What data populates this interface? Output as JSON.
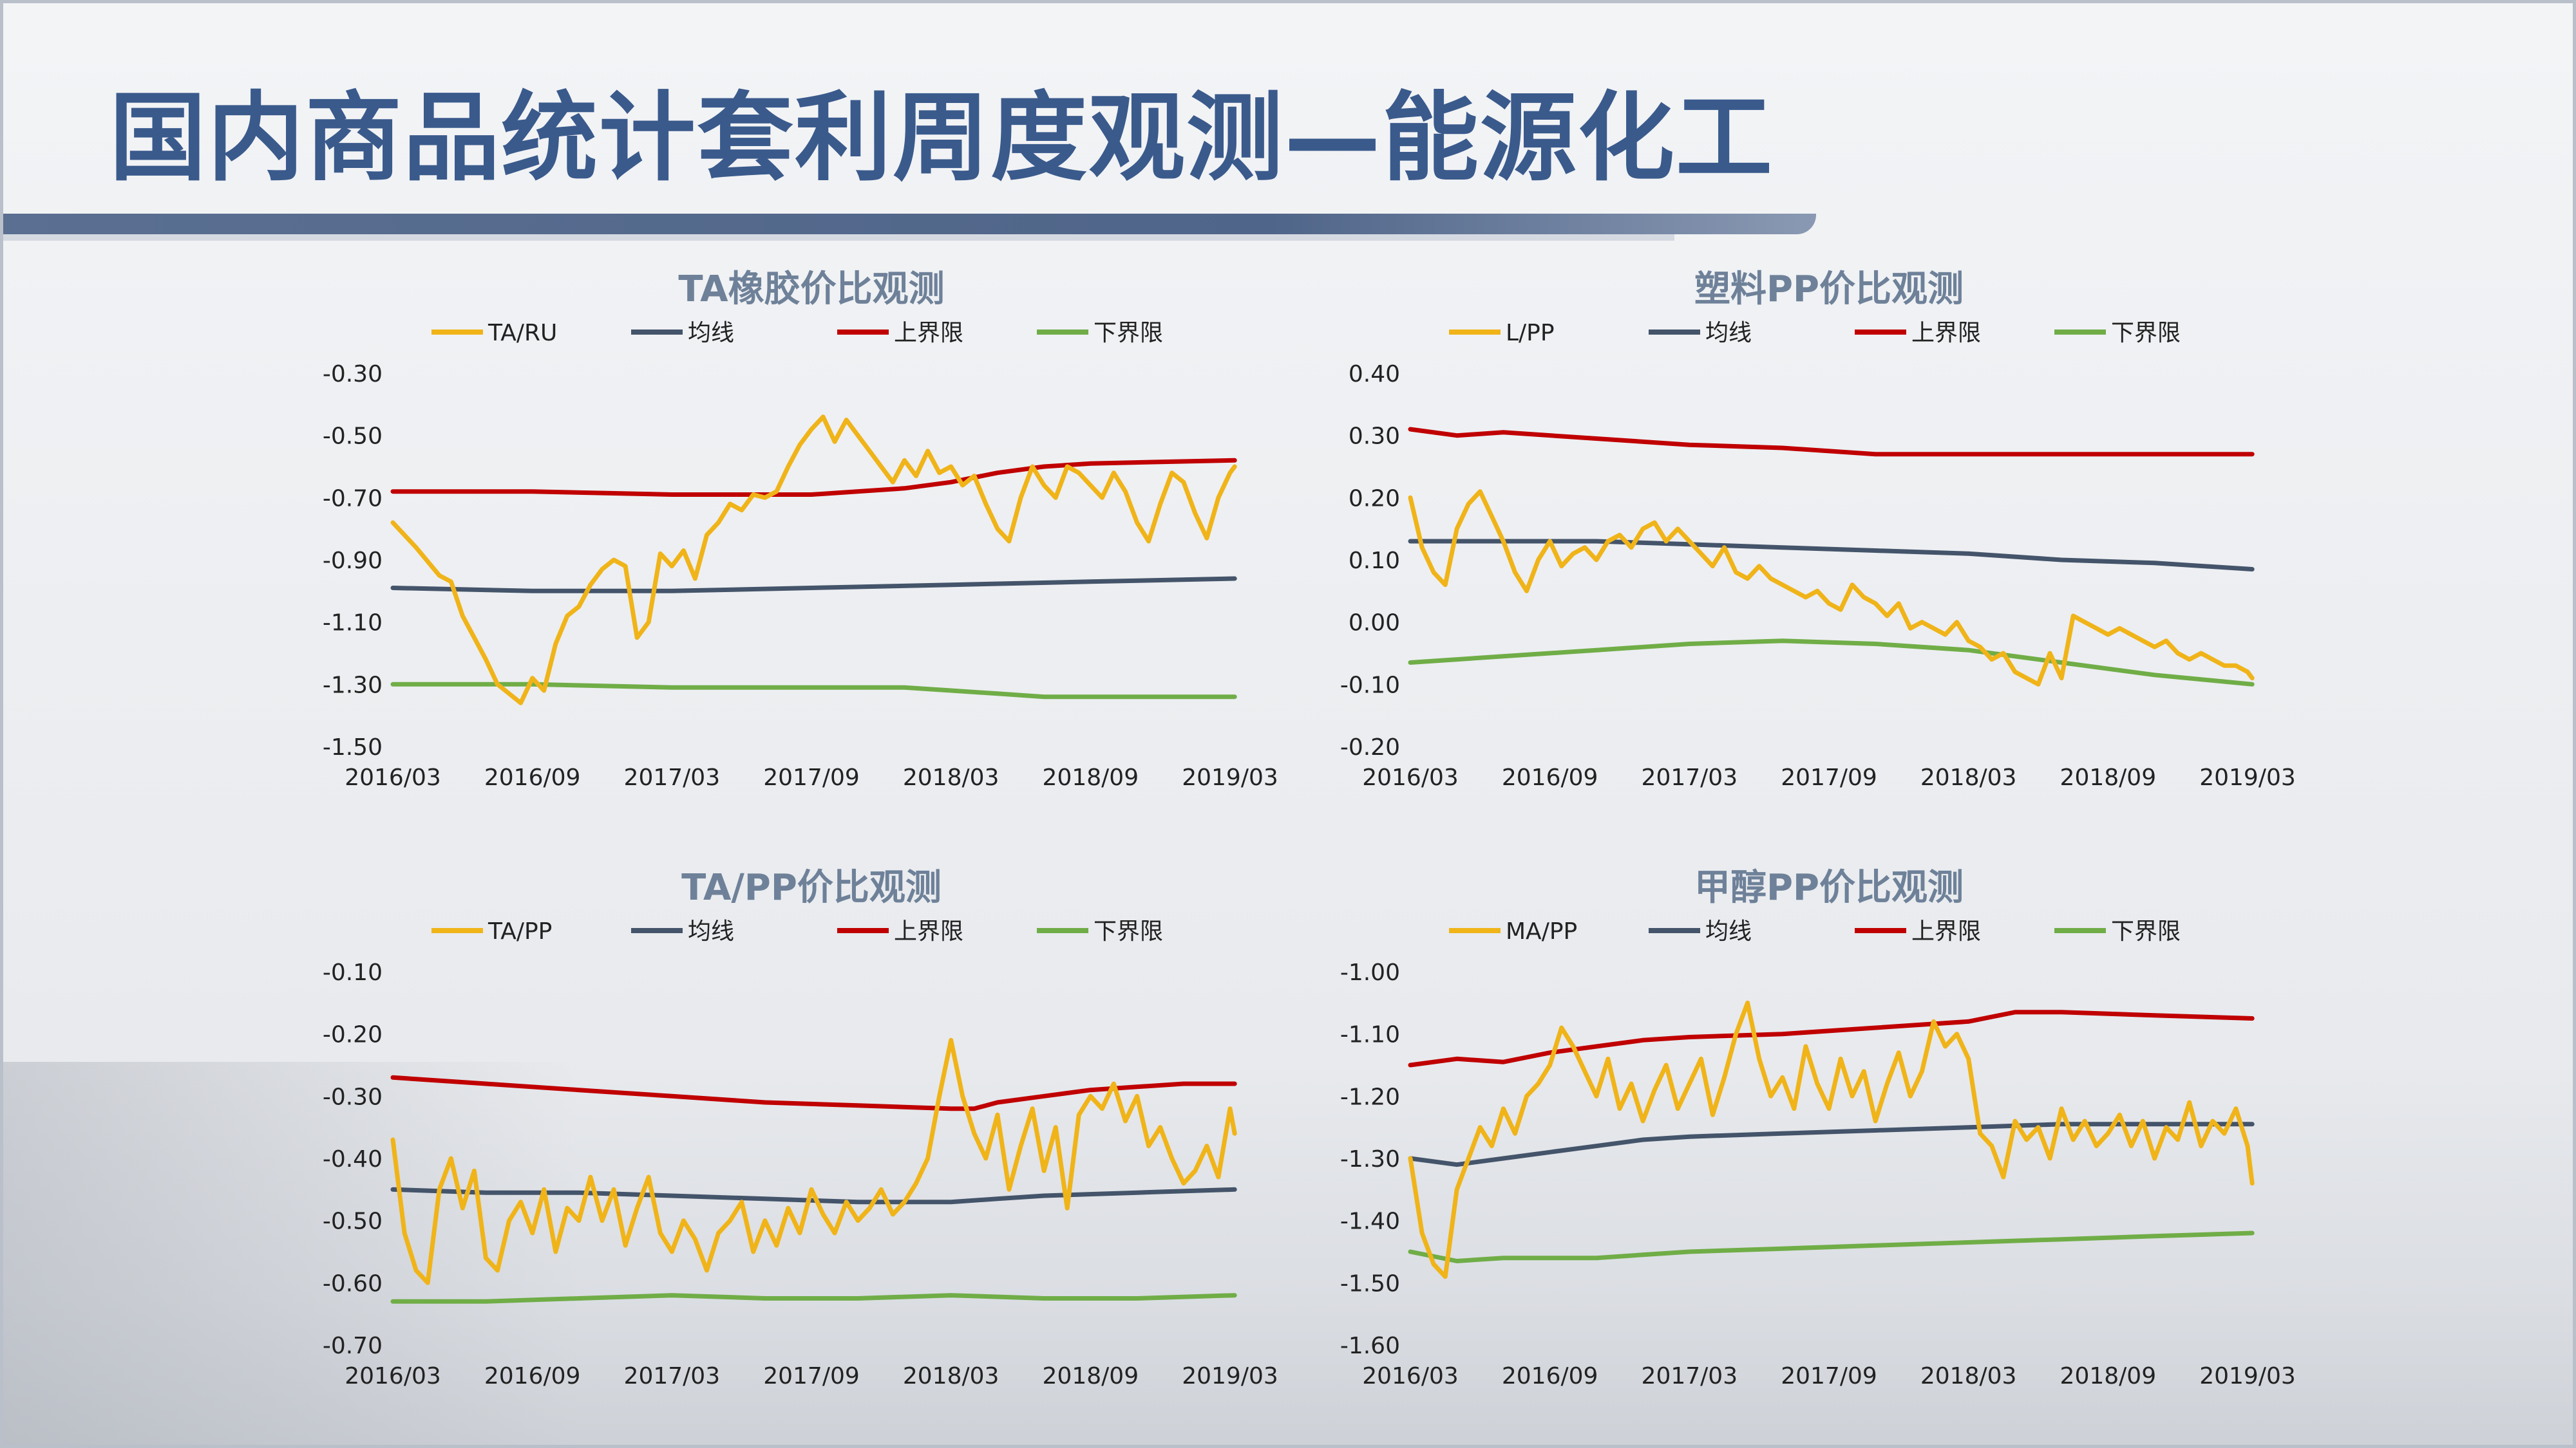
{
  "page": {
    "title": "国内商品统计套利周度观测—能源化工"
  },
  "colors": {
    "ratio": "#f0b419",
    "mean": "#44546a",
    "upper": "#c00000",
    "lower": "#70ad47",
    "title": "#3a5a8c",
    "chart_title": "#6e8199"
  },
  "chart_data": [
    {
      "type": "line",
      "title": "TA橡胶价比观测",
      "legend": [
        "TA/RU",
        "均线",
        "上界限",
        "下界限"
      ],
      "legend_position": "top",
      "x_ticks": [
        "2016/03",
        "2016/09",
        "2017/03",
        "2017/09",
        "2018/03",
        "2018/09",
        "2019/03"
      ],
      "y_ticks": [
        "-0.30",
        "-0.50",
        "-0.70",
        "-0.90",
        "-1.10",
        "-1.30",
        "-1.50"
      ],
      "ylim": [
        -1.5,
        -0.3
      ],
      "grid": false,
      "series": [
        {
          "name": "TA/RU",
          "x": [
            0,
            1,
            2,
            2.5,
            3,
            3.5,
            4,
            4.5,
            5,
            5.5,
            6,
            6.5,
            7,
            7.5,
            8,
            8.5,
            9,
            9.5,
            10,
            10.5,
            11,
            11.5,
            12,
            12.5,
            13,
            13.5,
            14,
            14.5,
            15,
            15.5,
            16,
            16.5,
            17,
            17.5,
            18,
            18.5,
            19,
            19.5,
            20,
            20.5,
            21,
            21.5,
            22,
            22.5,
            23,
            23.5,
            24,
            24.5,
            25,
            25.5,
            26,
            26.5,
            27,
            27.5,
            28,
            28.5,
            29,
            29.5,
            30,
            30.5,
            31,
            31.5,
            32,
            32.5,
            33,
            33.5,
            34,
            34.5,
            35,
            35.5,
            36,
            36.2
          ],
          "y": [
            -0.78,
            -0.86,
            -0.95,
            -0.97,
            -1.08,
            -1.15,
            -1.22,
            -1.3,
            -1.33,
            -1.36,
            -1.28,
            -1.32,
            -1.17,
            -1.08,
            -1.05,
            -0.98,
            -0.93,
            -0.9,
            -0.92,
            -1.15,
            -1.1,
            -0.88,
            -0.92,
            -0.87,
            -0.96,
            -0.82,
            -0.78,
            -0.72,
            -0.74,
            -0.69,
            -0.7,
            -0.68,
            -0.6,
            -0.53,
            -0.48,
            -0.44,
            -0.52,
            -0.45,
            -0.5,
            -0.55,
            -0.6,
            -0.65,
            -0.58,
            -0.63,
            -0.55,
            -0.62,
            -0.6,
            -0.66,
            -0.63,
            -0.72,
            -0.8,
            -0.84,
            -0.7,
            -0.6,
            -0.66,
            -0.7,
            -0.6,
            -0.62,
            -0.66,
            -0.7,
            -0.62,
            -0.68,
            -0.78,
            -0.84,
            -0.72,
            -0.62,
            -0.65,
            -0.75,
            -0.83,
            -0.7,
            -0.62,
            -0.6
          ]
        },
        {
          "name": "均线",
          "x": [
            0,
            6,
            12,
            18,
            24,
            30,
            36.2
          ],
          "y": [
            -0.99,
            -1.0,
            -1.0,
            -0.99,
            -0.98,
            -0.97,
            -0.96
          ]
        },
        {
          "name": "上界限",
          "x": [
            0,
            6,
            12,
            18,
            22,
            24,
            26,
            28,
            30,
            33,
            36.2
          ],
          "y": [
            -0.68,
            -0.68,
            -0.69,
            -0.69,
            -0.67,
            -0.65,
            -0.62,
            -0.6,
            -0.59,
            -0.585,
            -0.58
          ]
        },
        {
          "name": "下界限",
          "x": [
            0,
            6,
            12,
            18,
            22,
            24,
            26,
            28,
            30,
            33,
            36.2
          ],
          "y": [
            -1.3,
            -1.3,
            -1.31,
            -1.31,
            -1.31,
            -1.32,
            -1.33,
            -1.34,
            -1.34,
            -1.34,
            -1.34
          ]
        }
      ]
    },
    {
      "type": "line",
      "title": "塑料PP价比观测",
      "legend": [
        "L/PP",
        "均线",
        "上界限",
        "下界限"
      ],
      "legend_position": "top",
      "x_ticks": [
        "2016/03",
        "2016/09",
        "2017/03",
        "2017/09",
        "2018/03",
        "2018/09",
        "2019/03"
      ],
      "y_ticks": [
        "0.40",
        "0.30",
        "0.20",
        "0.10",
        "0.00",
        "-0.10",
        "-0.20"
      ],
      "ylim": [
        -0.2,
        0.4
      ],
      "grid": false,
      "series": [
        {
          "name": "L/PP",
          "x": [
            0,
            0.5,
            1,
            1.5,
            2,
            2.5,
            3,
            3.5,
            4,
            4.5,
            5,
            5.5,
            6,
            6.5,
            7,
            7.5,
            8,
            8.5,
            9,
            9.5,
            10,
            10.5,
            11,
            11.5,
            12,
            12.5,
            13,
            13.5,
            14,
            14.5,
            15,
            15.5,
            16,
            16.5,
            17,
            17.5,
            18,
            18.5,
            19,
            19.5,
            20,
            20.5,
            21,
            21.5,
            22,
            22.5,
            23,
            23.5,
            24,
            24.5,
            25,
            25.5,
            26,
            26.5,
            27,
            27.5,
            28,
            28.5,
            29,
            29.5,
            30,
            30.5,
            31,
            31.5,
            32,
            32.5,
            33,
            33.5,
            34,
            34.5,
            35,
            35.5,
            36,
            36.2
          ],
          "y": [
            0.2,
            0.12,
            0.08,
            0.06,
            0.15,
            0.19,
            0.21,
            0.17,
            0.13,
            0.08,
            0.05,
            0.1,
            0.13,
            0.09,
            0.11,
            0.12,
            0.1,
            0.13,
            0.14,
            0.12,
            0.15,
            0.16,
            0.13,
            0.15,
            0.13,
            0.11,
            0.09,
            0.12,
            0.08,
            0.07,
            0.09,
            0.07,
            0.06,
            0.05,
            0.04,
            0.05,
            0.03,
            0.02,
            0.06,
            0.04,
            0.03,
            0.01,
            0.03,
            -0.01,
            0.0,
            -0.01,
            -0.02,
            0.0,
            -0.03,
            -0.04,
            -0.06,
            -0.05,
            -0.08,
            -0.09,
            -0.1,
            -0.05,
            -0.09,
            0.01,
            0.0,
            -0.01,
            -0.02,
            -0.01,
            -0.02,
            -0.03,
            -0.04,
            -0.03,
            -0.05,
            -0.06,
            -0.05,
            -0.06,
            -0.07,
            -0.07,
            -0.08,
            -0.09
          ]
        },
        {
          "name": "均线",
          "x": [
            0,
            4,
            8,
            12,
            16,
            20,
            24,
            28,
            32,
            36.2
          ],
          "y": [
            0.13,
            0.13,
            0.13,
            0.125,
            0.12,
            0.115,
            0.11,
            0.1,
            0.095,
            0.085
          ]
        },
        {
          "name": "上界限",
          "x": [
            0,
            2,
            4,
            8,
            12,
            16,
            20,
            24,
            28,
            32,
            36.2
          ],
          "y": [
            0.31,
            0.3,
            0.305,
            0.295,
            0.285,
            0.28,
            0.27,
            0.27,
            0.27,
            0.27,
            0.27
          ]
        },
        {
          "name": "下界限",
          "x": [
            0,
            4,
            8,
            12,
            16,
            20,
            24,
            28,
            32,
            36.2
          ],
          "y": [
            -0.065,
            -0.055,
            -0.045,
            -0.035,
            -0.03,
            -0.035,
            -0.045,
            -0.065,
            -0.085,
            -0.1
          ]
        }
      ]
    },
    {
      "type": "line",
      "title": "TA/PP价比观测",
      "legend": [
        "TA/PP",
        "均线",
        "上界限",
        "下界限"
      ],
      "legend_position": "top",
      "x_ticks": [
        "2016/03",
        "2016/09",
        "2017/03",
        "2017/09",
        "2018/03",
        "2018/09",
        "2019/03"
      ],
      "y_ticks": [
        "-0.10",
        "-0.20",
        "-0.30",
        "-0.40",
        "-0.50",
        "-0.60",
        "-0.70"
      ],
      "ylim": [
        -0.7,
        -0.1
      ],
      "grid": false,
      "series": [
        {
          "name": "TA/PP",
          "x": [
            0,
            0.5,
            1,
            1.5,
            2,
            2.5,
            3,
            3.5,
            4,
            4.5,
            5,
            5.5,
            6,
            6.5,
            7,
            7.5,
            8,
            8.5,
            9,
            9.5,
            10,
            10.5,
            11,
            11.5,
            12,
            12.5,
            13,
            13.5,
            14,
            14.5,
            15,
            15.5,
            16,
            16.5,
            17,
            17.5,
            18,
            18.5,
            19,
            19.5,
            20,
            20.5,
            21,
            21.5,
            22,
            22.5,
            23,
            23.5,
            24,
            24.5,
            25,
            25.5,
            26,
            26.5,
            27,
            27.5,
            28,
            28.5,
            29,
            29.5,
            30,
            30.5,
            31,
            31.5,
            32,
            32.5,
            33,
            33.5,
            34,
            34.5,
            35,
            35.5,
            36,
            36.2
          ],
          "y": [
            -0.37,
            -0.52,
            -0.58,
            -0.6,
            -0.45,
            -0.4,
            -0.48,
            -0.42,
            -0.56,
            -0.58,
            -0.5,
            -0.47,
            -0.52,
            -0.45,
            -0.55,
            -0.48,
            -0.5,
            -0.43,
            -0.5,
            -0.45,
            -0.54,
            -0.48,
            -0.43,
            -0.52,
            -0.55,
            -0.5,
            -0.53,
            -0.58,
            -0.52,
            -0.5,
            -0.47,
            -0.55,
            -0.5,
            -0.54,
            -0.48,
            -0.52,
            -0.45,
            -0.49,
            -0.52,
            -0.47,
            -0.5,
            -0.48,
            -0.45,
            -0.49,
            -0.47,
            -0.44,
            -0.4,
            -0.3,
            -0.21,
            -0.3,
            -0.36,
            -0.4,
            -0.33,
            -0.45,
            -0.38,
            -0.32,
            -0.42,
            -0.35,
            -0.48,
            -0.33,
            -0.3,
            -0.32,
            -0.28,
            -0.34,
            -0.3,
            -0.38,
            -0.35,
            -0.4,
            -0.44,
            -0.42,
            -0.38,
            -0.43,
            -0.32,
            -0.36
          ]
        },
        {
          "name": "均线",
          "x": [
            0,
            4,
            8,
            12,
            16,
            20,
            24,
            26,
            28,
            32,
            36.2
          ],
          "y": [
            -0.45,
            -0.455,
            -0.455,
            -0.46,
            -0.465,
            -0.47,
            -0.47,
            -0.465,
            -0.46,
            -0.455,
            -0.45
          ]
        },
        {
          "name": "上界限",
          "x": [
            0,
            4,
            8,
            12,
            16,
            20,
            24,
            25,
            26,
            28,
            30,
            32,
            34,
            36.2
          ],
          "y": [
            -0.27,
            -0.28,
            -0.29,
            -0.3,
            -0.31,
            -0.315,
            -0.32,
            -0.32,
            -0.31,
            -0.3,
            -0.29,
            -0.285,
            -0.28,
            -0.28
          ]
        },
        {
          "name": "下界限",
          "x": [
            0,
            4,
            8,
            12,
            16,
            20,
            24,
            28,
            32,
            36.2
          ],
          "y": [
            -0.63,
            -0.63,
            -0.625,
            -0.62,
            -0.625,
            -0.625,
            -0.62,
            -0.625,
            -0.625,
            -0.62
          ]
        }
      ]
    },
    {
      "type": "line",
      "title": "甲醇PP价比观测",
      "legend": [
        "MA/PP",
        "均线",
        "上界限",
        "下界限"
      ],
      "legend_position": "top",
      "x_ticks": [
        "2016/03",
        "2016/09",
        "2017/03",
        "2017/09",
        "2018/03",
        "2018/09",
        "2019/03"
      ],
      "y_ticks": [
        "-1.00",
        "-1.10",
        "-1.20",
        "-1.30",
        "-1.40",
        "-1.50",
        "-1.60"
      ],
      "ylim": [
        -1.6,
        -1.0
      ],
      "grid": false,
      "series": [
        {
          "name": "MA/PP",
          "x": [
            0,
            0.5,
            1,
            1.5,
            2,
            2.5,
            3,
            3.5,
            4,
            4.5,
            5,
            5.5,
            6,
            6.5,
            7,
            7.5,
            8,
            8.5,
            9,
            9.5,
            10,
            10.5,
            11,
            11.5,
            12,
            12.5,
            13,
            13.5,
            14,
            14.5,
            15,
            15.5,
            16,
            16.5,
            17,
            17.5,
            18,
            18.5,
            19,
            19.5,
            20,
            20.5,
            21,
            21.5,
            22,
            22.5,
            23,
            23.5,
            24,
            24.5,
            25,
            25.5,
            26,
            26.5,
            27,
            27.5,
            28,
            28.5,
            29,
            29.5,
            30,
            30.5,
            31,
            31.5,
            32,
            32.5,
            33,
            33.5,
            34,
            34.5,
            35,
            35.5,
            36,
            36.2
          ],
          "y": [
            -1.3,
            -1.42,
            -1.47,
            -1.49,
            -1.35,
            -1.3,
            -1.25,
            -1.28,
            -1.22,
            -1.26,
            -1.2,
            -1.18,
            -1.15,
            -1.09,
            -1.12,
            -1.16,
            -1.2,
            -1.14,
            -1.22,
            -1.18,
            -1.24,
            -1.19,
            -1.15,
            -1.22,
            -1.18,
            -1.14,
            -1.23,
            -1.17,
            -1.1,
            -1.05,
            -1.14,
            -1.2,
            -1.17,
            -1.22,
            -1.12,
            -1.18,
            -1.22,
            -1.14,
            -1.2,
            -1.16,
            -1.24,
            -1.18,
            -1.13,
            -1.2,
            -1.16,
            -1.08,
            -1.12,
            -1.1,
            -1.14,
            -1.26,
            -1.28,
            -1.33,
            -1.24,
            -1.27,
            -1.25,
            -1.3,
            -1.22,
            -1.27,
            -1.24,
            -1.28,
            -1.26,
            -1.23,
            -1.28,
            -1.24,
            -1.3,
            -1.25,
            -1.27,
            -1.21,
            -1.28,
            -1.24,
            -1.26,
            -1.22,
            -1.28,
            -1.34
          ]
        },
        {
          "name": "均线",
          "x": [
            0,
            2,
            4,
            6,
            8,
            10,
            12,
            16,
            20,
            24,
            28,
            32,
            36.2
          ],
          "y": [
            -1.3,
            -1.31,
            -1.3,
            -1.29,
            -1.28,
            -1.27,
            -1.265,
            -1.26,
            -1.255,
            -1.25,
            -1.245,
            -1.245,
            -1.245
          ]
        },
        {
          "name": "上界限",
          "x": [
            0,
            2,
            4,
            6,
            8,
            10,
            12,
            16,
            20,
            24,
            26,
            28,
            32,
            36.2
          ],
          "y": [
            -1.15,
            -1.14,
            -1.145,
            -1.13,
            -1.12,
            -1.11,
            -1.105,
            -1.1,
            -1.09,
            -1.08,
            -1.065,
            -1.065,
            -1.07,
            -1.075
          ]
        },
        {
          "name": "下界限",
          "x": [
            0,
            2,
            4,
            6,
            8,
            10,
            12,
            16,
            20,
            24,
            28,
            32,
            36.2
          ],
          "y": [
            -1.45,
            -1.465,
            -1.46,
            -1.46,
            -1.46,
            -1.455,
            -1.45,
            -1.445,
            -1.44,
            -1.435,
            -1.43,
            -1.425,
            -1.42
          ]
        }
      ]
    }
  ]
}
